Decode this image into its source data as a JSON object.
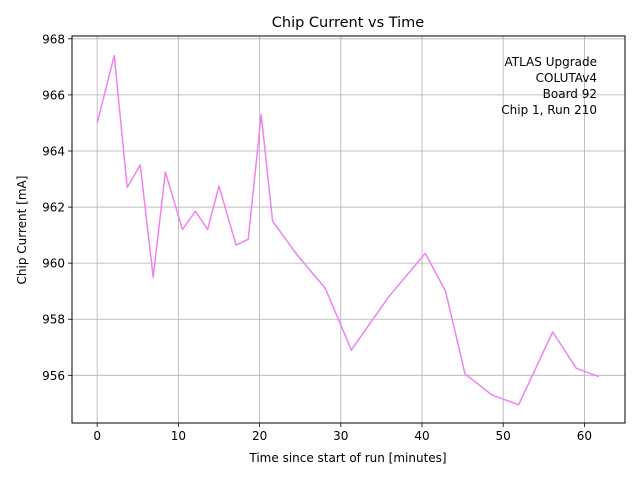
{
  "chart_data": {
    "type": "line",
    "title": "Chip Current vs Time",
    "xlabel": "Time since start of run [minutes]",
    "ylabel": "Chip Current [mA]",
    "xlim": [
      -3.1,
      65
    ],
    "ylim": [
      954.3,
      968.1
    ],
    "xticks": [
      0,
      10,
      20,
      30,
      40,
      50,
      60
    ],
    "yticks": [
      956,
      958,
      960,
      962,
      964,
      966,
      968
    ],
    "grid": true,
    "annotation": [
      "ATLAS Upgrade",
      "COLUTAv4",
      "Board 92",
      "Chip 1, Run 210"
    ],
    "series": [
      {
        "color": "#ee82ee",
        "x": [
          0,
          2.1,
          3.7,
          5.3,
          6.9,
          8.4,
          10.5,
          12.1,
          13.6,
          15.0,
          17.1,
          18.6,
          20.2,
          21.6,
          24.6,
          28.1,
          31.3,
          35.9,
          40.4,
          42.9,
          45.3,
          48.6,
          51.9,
          56.1,
          59.0,
          61.8
        ],
        "y": [
          965.0,
          967.4,
          962.7,
          963.5,
          959.5,
          963.25,
          961.2,
          961.85,
          961.2,
          962.75,
          960.65,
          960.85,
          965.3,
          961.5,
          960.3,
          959.1,
          956.9,
          958.8,
          960.35,
          959.0,
          956.05,
          955.3,
          954.95,
          957.55,
          956.25,
          955.95
        ]
      }
    ]
  }
}
